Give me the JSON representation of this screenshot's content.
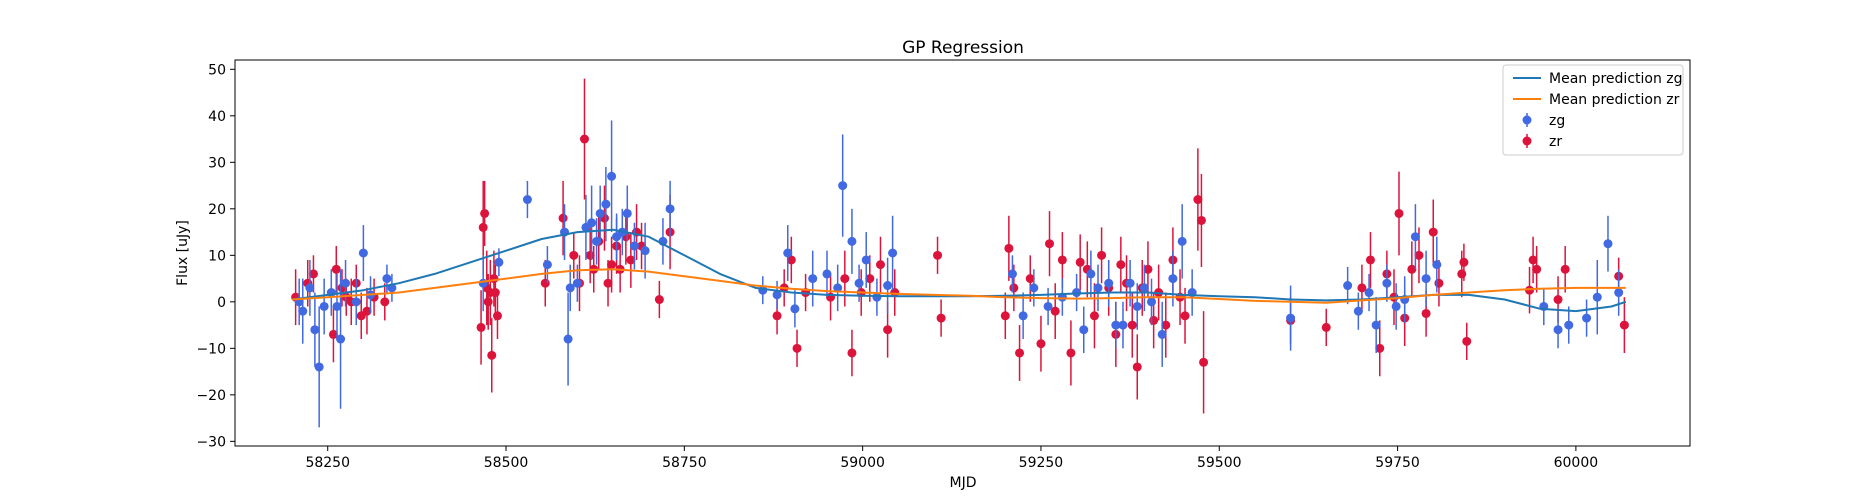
{
  "chart_data": {
    "type": "scatter",
    "title": "GP Regression",
    "xlabel": "MJD",
    "ylabel": "Flux [uJy]",
    "xlim": [
      58120,
      60160
    ],
    "ylim": [
      -31,
      52
    ],
    "xticks": [
      58250,
      58500,
      58750,
      59000,
      59250,
      59500,
      59750,
      60000
    ],
    "yticks": [
      -30,
      -20,
      -10,
      0,
      10,
      20,
      30,
      40,
      50
    ],
    "grid": false,
    "legend_position": "top-right",
    "legend": [
      {
        "label": "Mean prediction zg",
        "kind": "line",
        "color": "#1f77b4"
      },
      {
        "label": "Mean prediction zr",
        "kind": "line",
        "color": "#ff7f0e"
      },
      {
        "label": "zg",
        "kind": "errorbar",
        "color": "#4169e1"
      },
      {
        "label": "zr",
        "kind": "errorbar",
        "color": "#dc143c"
      }
    ],
    "series": [
      {
        "name": "Mean prediction zg",
        "kind": "line",
        "color": "#1f77b4",
        "x": [
          58200,
          58250,
          58300,
          58350,
          58400,
          58450,
          58500,
          58550,
          58600,
          58650,
          58700,
          58750,
          58800,
          58850,
          58900,
          58950,
          59000,
          59050,
          59100,
          59150,
          59200,
          59250,
          59300,
          59350,
          59400,
          59450,
          59500,
          59550,
          59600,
          59650,
          59700,
          59750,
          59800,
          59850,
          59900,
          59950,
          60000,
          60050,
          60070
        ],
        "y": [
          0.5,
          1.5,
          2.5,
          4,
          6,
          8.5,
          11,
          13.5,
          15,
          15.5,
          14,
          10,
          6,
          3,
          2,
          1.5,
          1.3,
          1.2,
          1.2,
          1.2,
          1.3,
          1.5,
          1.8,
          2,
          2,
          1.5,
          1.2,
          1.0,
          0.5,
          0.3,
          0.5,
          1.0,
          1.5,
          1.5,
          0.5,
          -1.5,
          -2,
          -1,
          0
        ]
      },
      {
        "name": "Mean prediction zr",
        "kind": "line",
        "color": "#ff7f0e",
        "x": [
          58200,
          58250,
          58300,
          58350,
          58400,
          58450,
          58500,
          58550,
          58600,
          58650,
          58700,
          58750,
          58800,
          58850,
          58900,
          58950,
          59000,
          59050,
          59100,
          59150,
          59200,
          59250,
          59300,
          59350,
          59400,
          59450,
          59500,
          59550,
          59600,
          59650,
          59700,
          59750,
          59800,
          59850,
          59900,
          59950,
          60000,
          60050,
          60070
        ],
        "y": [
          0.5,
          1,
          1.5,
          2,
          3,
          4,
          5,
          6,
          6.8,
          7,
          6.5,
          5.5,
          4.5,
          3.5,
          2.8,
          2.3,
          2,
          1.7,
          1.5,
          1.3,
          1.0,
          0.8,
          0.7,
          0.8,
          1.0,
          1.0,
          0.6,
          0.2,
          0,
          -0.2,
          0.3,
          0.8,
          1.5,
          2.0,
          2.5,
          2.8,
          3,
          3,
          3
        ]
      },
      {
        "name": "zg",
        "kind": "errorbar",
        "color": "#4169e1",
        "x": [
          58210,
          58215,
          58225,
          58232,
          58238,
          58245,
          58255,
          58263,
          58268,
          58275,
          58290,
          58300,
          58310,
          58333,
          58340,
          58468,
          58490,
          58530,
          58558,
          58582,
          58587,
          58590,
          58600,
          58612,
          58620,
          58627,
          58632,
          58640,
          58648,
          58655,
          58663,
          58670,
          58680,
          58695,
          58720,
          58730,
          58860,
          58880,
          58895,
          58905,
          58930,
          58950,
          58965,
          58972,
          58985,
          58995,
          59005,
          59020,
          59035,
          59042,
          59210,
          59225,
          59240,
          59260,
          59280,
          59300,
          59310,
          59320,
          59330,
          59345,
          59355,
          59365,
          59375,
          59385,
          59395,
          59405,
          59420,
          59435,
          59448,
          59462,
          59600,
          59680,
          59695,
          59710,
          59720,
          59735,
          59748,
          59760,
          59775,
          59790,
          59805,
          59955,
          59975,
          59990,
          60015,
          60030,
          60045,
          60060
        ],
        "y": [
          0,
          -2,
          3,
          -6,
          -14,
          -1,
          2,
          -1,
          -8,
          4,
          0,
          10.5,
          1.5,
          5,
          3,
          4,
          8.5,
          22,
          8,
          15,
          -8,
          3,
          4,
          16,
          17,
          13,
          19,
          21,
          27,
          14,
          15,
          19,
          12,
          11,
          13,
          20,
          2.5,
          1.5,
          10.5,
          -1.5,
          5,
          6,
          3,
          25,
          13,
          4,
          9,
          1,
          3.5,
          10.5,
          6,
          -3,
          3,
          -1,
          1,
          2,
          -6,
          6,
          3,
          4,
          -5,
          -5,
          4,
          -1,
          3,
          0,
          -7,
          5,
          13,
          2,
          -3.5,
          3.5,
          -2,
          2,
          -5,
          4,
          -1,
          0.5,
          14,
          5,
          8,
          -1,
          -6,
          -5,
          -3.5,
          1,
          12.5,
          2
        ],
        "yerr": [
          5,
          7,
          6,
          8,
          13,
          6,
          5,
          7,
          15,
          5,
          5,
          6,
          4,
          3,
          3,
          6,
          3,
          4,
          4,
          6,
          10,
          5,
          4,
          7,
          8,
          5,
          6,
          8,
          12,
          5,
          5,
          6,
          5,
          6,
          5,
          6,
          3,
          3,
          6,
          4,
          6,
          5,
          5,
          11,
          7,
          4,
          6,
          4,
          6,
          8,
          4,
          5,
          4,
          4,
          4,
          4,
          5,
          5,
          5,
          5,
          5,
          5,
          5,
          5,
          5,
          5,
          7,
          6,
          8,
          5,
          7,
          4,
          4,
          4,
          6,
          4,
          5,
          5,
          7,
          6,
          6,
          4,
          4,
          4,
          4,
          8,
          6,
          5
        ]
      },
      {
        "name": "zr",
        "kind": "errorbar",
        "color": "#dc143c",
        "x": [
          58205,
          58222,
          58230,
          58258,
          58262,
          58270,
          58276,
          58283,
          58290,
          58297,
          58305,
          58315,
          58330,
          58465,
          58468,
          58470,
          58473,
          58475,
          58478,
          58480,
          58483,
          58485,
          58488,
          58555,
          58580,
          58595,
          58603,
          58610,
          58618,
          58623,
          58630,
          58638,
          58643,
          58648,
          58655,
          58660,
          58668,
          58675,
          58683,
          58690,
          58715,
          58730,
          58880,
          58890,
          58900,
          58908,
          58920,
          58955,
          58975,
          58985,
          58998,
          59010,
          59025,
          59035,
          59045,
          59105,
          59110,
          59200,
          59205,
          59212,
          59220,
          59235,
          59250,
          59262,
          59270,
          59280,
          59292,
          59305,
          59315,
          59325,
          59335,
          59345,
          59355,
          59362,
          59370,
          59378,
          59385,
          59392,
          59400,
          59408,
          59415,
          59425,
          59435,
          59445,
          59452,
          59470,
          59475,
          59478,
          59600,
          59650,
          59700,
          59712,
          59725,
          59735,
          59745,
          59752,
          59760,
          59770,
          59780,
          59790,
          59800,
          59808,
          59840,
          59843,
          59847,
          59935,
          59940,
          59945,
          59975,
          59985,
          60060,
          60068
        ],
        "y": [
          1,
          4,
          6,
          -7,
          7,
          3,
          1,
          0,
          4,
          -3,
          -2,
          1,
          0,
          -5.5,
          16,
          19,
          3,
          0,
          2,
          -11.5,
          5,
          2,
          -3,
          4,
          18,
          10,
          4,
          35,
          10,
          7,
          13,
          18,
          4,
          8,
          12,
          7,
          14,
          9,
          15,
          12,
          0.5,
          15,
          -3,
          3,
          9,
          -10,
          2,
          1,
          5,
          -11,
          2,
          5,
          8,
          -6,
          2,
          10,
          -3.5,
          -3,
          11.5,
          3,
          -11,
          5,
          -9,
          12.5,
          -2,
          9,
          -11,
          8.5,
          7,
          -3,
          10,
          3,
          -7,
          8,
          4,
          -5,
          -14,
          3,
          7,
          -4,
          2,
          -5,
          9,
          1,
          -3,
          22,
          17.5,
          -13,
          -4,
          -5.5,
          3,
          9,
          -10,
          6,
          1,
          19,
          -3.5,
          7,
          10,
          -2.5,
          15,
          4,
          6,
          8.5,
          -8.5,
          2.5,
          9,
          7,
          0.5,
          7,
          5.5,
          -5
        ],
        "yerr": [
          6,
          5,
          4,
          6,
          5,
          4,
          4,
          5,
          4,
          5,
          5,
          4,
          4,
          8,
          10,
          7,
          8,
          6,
          7,
          8,
          6,
          6,
          5,
          5,
          8,
          5,
          6,
          13,
          6,
          5,
          6,
          7,
          5,
          6,
          6,
          5,
          6,
          6,
          6,
          5,
          4,
          8,
          4,
          4,
          5,
          4,
          4,
          5,
          6,
          5,
          5,
          5,
          6,
          6,
          5,
          4,
          4,
          5,
          7,
          5,
          6,
          5,
          6,
          7,
          6,
          6,
          7,
          6,
          6,
          7,
          6,
          6,
          7,
          6,
          6,
          7,
          7,
          6,
          6,
          6,
          6,
          7,
          7,
          6,
          6,
          11,
          10,
          11,
          5,
          4,
          5,
          6,
          6,
          5,
          6,
          9,
          6,
          6,
          6,
          5,
          7,
          5,
          5,
          4,
          4,
          5,
          5,
          5,
          5,
          5,
          4,
          6
        ]
      }
    ]
  }
}
